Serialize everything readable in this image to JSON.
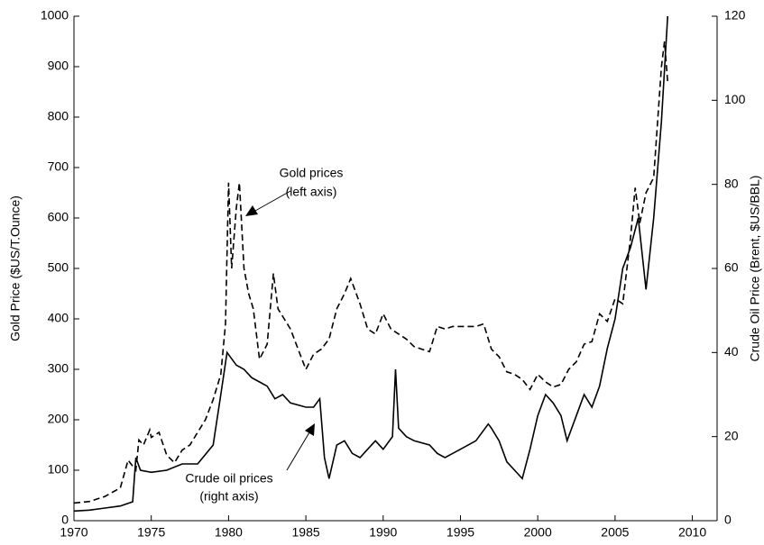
{
  "chart_data": {
    "type": "line",
    "xlabel": null,
    "ylabel": "Gold Price ($US/T.Ounce)",
    "y2label": "Crude Oil Price (Brent, $US/BBL)",
    "xlim": [
      1970,
      2011.6
    ],
    "xticks": [
      1970,
      1975,
      1980,
      1985,
      1990,
      1995,
      2000,
      2005,
      2010
    ],
    "ylim": [
      0,
      1000
    ],
    "yticks": [
      0,
      100,
      200,
      300,
      400,
      500,
      600,
      700,
      800,
      900,
      1000
    ],
    "y2lim": [
      0,
      120
    ],
    "y2ticks": [
      0,
      20,
      40,
      60,
      80,
      100,
      120
    ],
    "annotations": [
      {
        "lines": [
          "Gold prices",
          "(left axis)"
        ]
      },
      {
        "lines": [
          "Crude oil prices",
          "(right axis)"
        ]
      }
    ],
    "series": [
      {
        "name": "Gold prices",
        "color": "#000000",
        "dash": true,
        "axis": "y",
        "x": [
          1970,
          1971,
          1972,
          1973,
          1973.5,
          1974,
          1974.2,
          1974.5,
          1974.9,
          1975,
          1975.5,
          1976,
          1976.5,
          1977,
          1977.5,
          1978,
          1978.5,
          1979,
          1979.5,
          1979.8,
          1980,
          1980.2,
          1980.5,
          1980.7,
          1981,
          1981.3,
          1981.6,
          1982,
          1982.5,
          1982.9,
          1983.2,
          1983.6,
          1984,
          1984.5,
          1985,
          1985.5,
          1986,
          1986.5,
          1987,
          1987.5,
          1987.9,
          1988.5,
          1989,
          1989.5,
          1990,
          1990.5,
          1991,
          1991.5,
          1992,
          1992.5,
          1993,
          1993.5,
          1994,
          1994.5,
          1995,
          1995.5,
          1996,
          1996.5,
          1997,
          1997.5,
          1998,
          1998.5,
          1999,
          1999.5,
          2000,
          2000.5,
          2001,
          2001.5,
          2002,
          2002.5,
          2003,
          2003.5,
          2004,
          2004.5,
          2005,
          2005.5,
          2006,
          2006.3,
          2006.6,
          2007,
          2007.5,
          2008,
          2008.2,
          2008.4
        ],
        "values": [
          35,
          38,
          48,
          65,
          120,
          100,
          160,
          150,
          180,
          165,
          175,
          130,
          115,
          140,
          150,
          175,
          200,
          240,
          290,
          390,
          670,
          500,
          620,
          670,
          500,
          450,
          420,
          320,
          350,
          490,
          420,
          400,
          380,
          340,
          300,
          330,
          340,
          360,
          420,
          450,
          480,
          430,
          380,
          370,
          410,
          380,
          370,
          360,
          345,
          340,
          335,
          385,
          380,
          385,
          385,
          385,
          385,
          390,
          340,
          325,
          295,
          290,
          280,
          260,
          290,
          275,
          265,
          270,
          300,
          315,
          350,
          355,
          410,
          395,
          440,
          430,
          560,
          660,
          590,
          650,
          680,
          900,
          950,
          870
        ]
      },
      {
        "name": "Crude oil prices",
        "color": "#000000",
        "dash": false,
        "axis": "y2",
        "x": [
          1970,
          1971,
          1972,
          1973,
          1973.8,
          1974,
          1974.3,
          1975,
          1976,
          1977,
          1978,
          1979,
          1979.5,
          1979.9,
          1980.5,
          1981,
          1981.5,
          1982,
          1982.5,
          1983,
          1983.5,
          1984,
          1985,
          1985.5,
          1985.9,
          1986.2,
          1986.5,
          1987,
          1987.5,
          1988,
          1988.5,
          1989,
          1989.5,
          1990,
          1990.6,
          1990.8,
          1991,
          1991.5,
          1992,
          1993,
          1993.5,
          1994,
          1995,
          1996,
          1996.8,
          1997,
          1997.5,
          1998,
          1998.5,
          1999,
          1999.5,
          2000,
          2000.5,
          2001,
          2001.5,
          2001.9,
          2002.5,
          2003,
          2003.5,
          2004,
          2004.5,
          2005,
          2005.5,
          2006,
          2006.5,
          2007,
          2007.5,
          2008,
          2008.4
        ],
        "values": [
          2.3,
          2.5,
          3,
          3.5,
          4.5,
          15,
          12,
          11.5,
          12,
          13.5,
          13.5,
          18,
          30,
          40,
          37,
          36,
          34,
          33,
          32,
          29,
          30,
          28,
          27,
          27,
          29,
          15,
          10,
          18,
          19,
          16,
          15,
          17,
          19,
          17,
          20,
          36,
          22,
          20,
          19,
          18,
          16,
          15,
          17,
          19,
          23,
          22,
          19,
          14,
          12,
          10,
          17,
          25,
          30,
          28,
          25,
          19,
          25,
          30,
          27,
          32,
          41,
          48,
          60,
          65,
          72,
          55,
          72,
          95,
          120
        ]
      }
    ]
  }
}
